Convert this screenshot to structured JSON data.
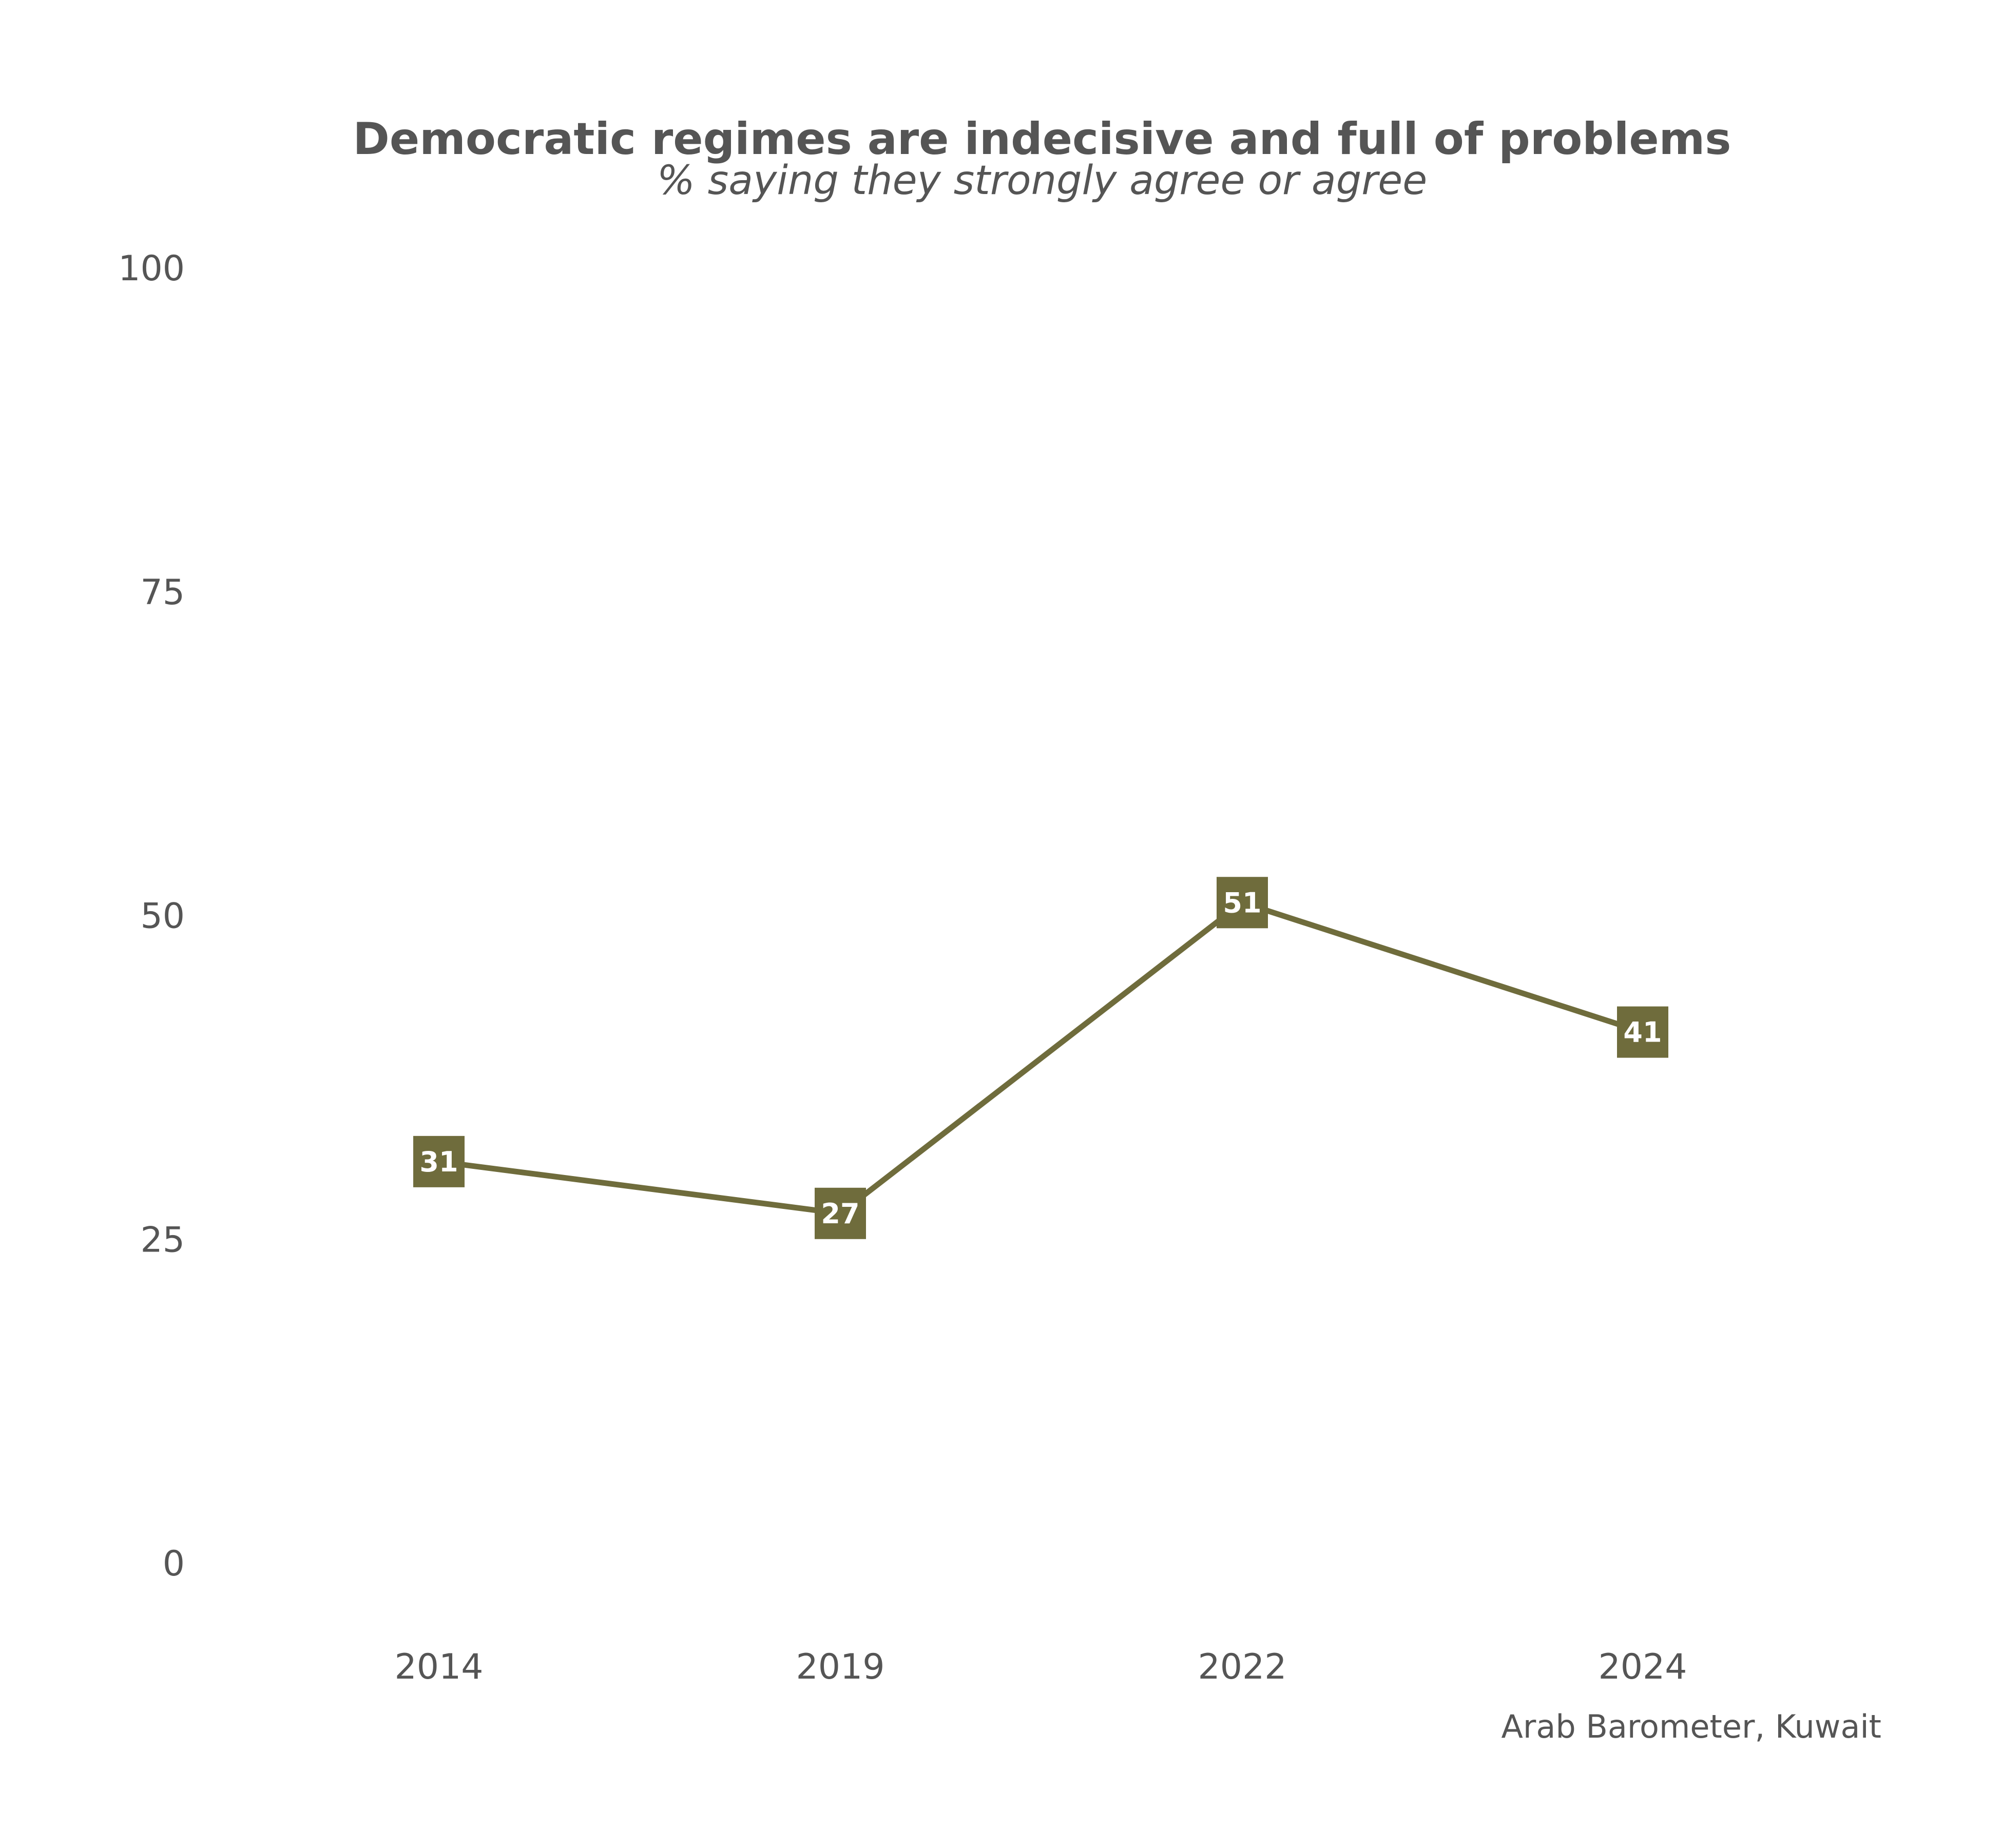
{
  "chart_data": {
    "type": "line",
    "title": "Democratic regimes are indecisive and full of problems",
    "subtitle": "% saying they strongly agree or agree",
    "caption": "Arab Barometer, Kuwait",
    "categories": [
      "2014",
      "2019",
      "2022",
      "2024"
    ],
    "series": [
      {
        "values": [
          31,
          27,
          51,
          41
        ],
        "color": "#6f6c3c"
      }
    ],
    "ylim": [
      0,
      100
    ],
    "yticks": [
      0,
      25,
      50,
      75,
      100
    ],
    "ytick_labels": [
      "0",
      "25",
      "50",
      "75",
      "100"
    ],
    "grid": false,
    "legend": "none",
    "label_text_color": "#ffffff",
    "text_color": "#555555"
  }
}
